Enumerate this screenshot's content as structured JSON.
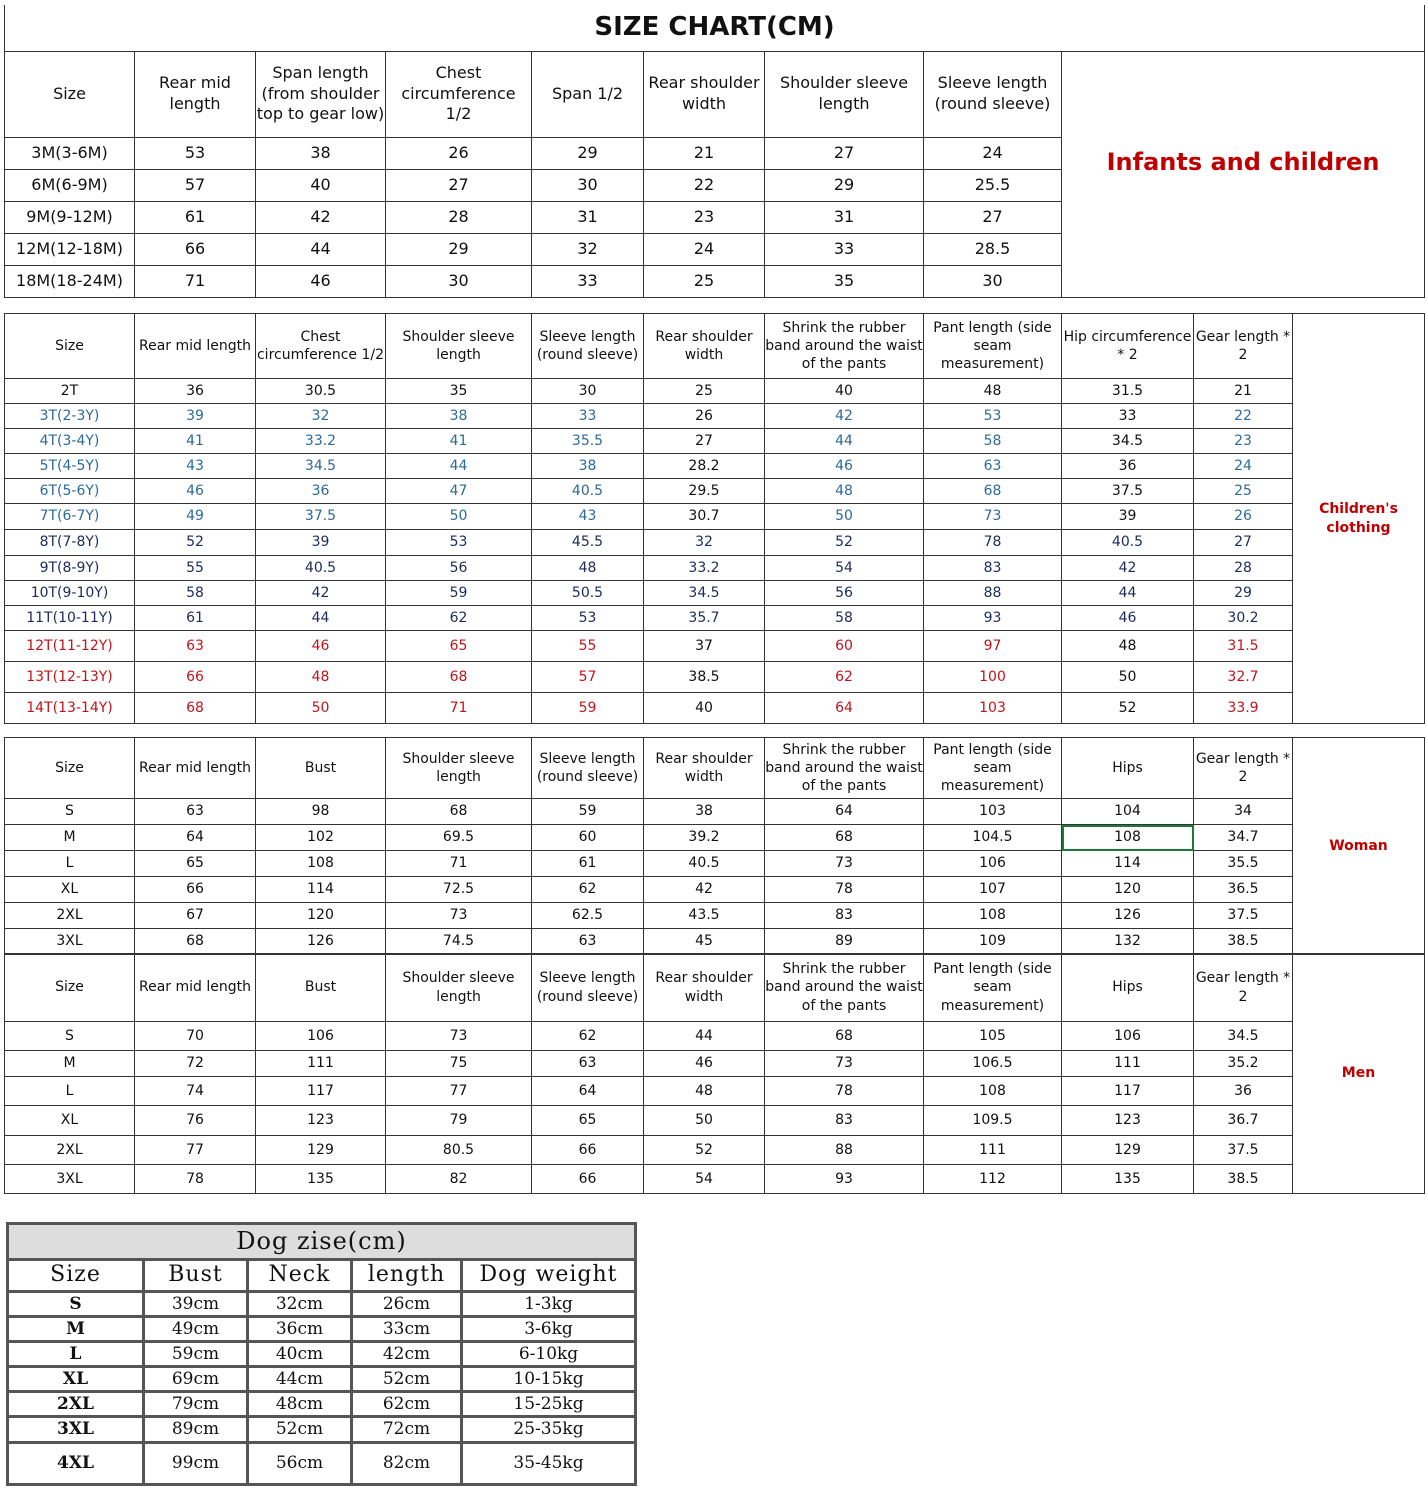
{
  "infant": {
    "title": "SIZE CHART(CM)",
    "label": "Infants and children",
    "headers": [
      "Size",
      "Rear mid length",
      "Span length (from shoulder top to gear low)",
      "Chest circumference 1/2",
      "Span 1/2",
      "Rear shoulder width",
      "Shoulder sleeve length",
      "Sleeve length (round sleeve)"
    ],
    "rows": [
      [
        "3M(3-6M)",
        "53",
        "38",
        "26",
        "29",
        "21",
        "27",
        "24"
      ],
      [
        "6M(6-9M)",
        "57",
        "40",
        "27",
        "30",
        "22",
        "29",
        "25.5"
      ],
      [
        "9M(9-12M)",
        "61",
        "42",
        "28",
        "31",
        "23",
        "31",
        "27"
      ],
      [
        "12M(12-18M)",
        "66",
        "44",
        "29",
        "32",
        "24",
        "33",
        "28.5"
      ],
      [
        "18M(18-24M)",
        "71",
        "46",
        "30",
        "33",
        "25",
        "35",
        "30"
      ]
    ]
  },
  "children": {
    "label": "Children's clothing",
    "headers": [
      "Size",
      "Rear mid length",
      "Chest circumference 1/2",
      "Shoulder sleeve length",
      "Sleeve length (round sleeve)",
      "Rear shoulder width",
      "Shrink the rubber band around the waist of the pants",
      "Pant length (side seam measurement)",
      "Hip circumference * 2",
      "Gear length * 2"
    ],
    "row_colors": [
      "black",
      "blue",
      "blue",
      "blue",
      "blue",
      "blue",
      "navy",
      "navy",
      "navy",
      "navy",
      "red",
      "red",
      "red"
    ],
    "colors": {
      "blue": "#2d6a9a",
      "navy": "#1c2b5a",
      "red": "#c0141c",
      "label": "#c00000"
    },
    "rows": [
      [
        "2T",
        "36",
        "30.5",
        "35",
        "30",
        "25",
        "40",
        "48",
        "31.5",
        "21"
      ],
      [
        "3T(2-3Y)",
        "39",
        "32",
        "38",
        "33",
        "26",
        "42",
        "53",
        "33",
        "22"
      ],
      [
        "4T(3-4Y)",
        "41",
        "33.2",
        "41",
        "35.5",
        "27",
        "44",
        "58",
        "34.5",
        "23"
      ],
      [
        "5T(4-5Y)",
        "43",
        "34.5",
        "44",
        "38",
        "28.2",
        "46",
        "63",
        "36",
        "24"
      ],
      [
        "6T(5-6Y)",
        "46",
        "36",
        "47",
        "40.5",
        "29.5",
        "48",
        "68",
        "37.5",
        "25"
      ],
      [
        "7T(6-7Y)",
        "49",
        "37.5",
        "50",
        "43",
        "30.7",
        "50",
        "73",
        "39",
        "26"
      ],
      [
        "8T(7-8Y)",
        "52",
        "39",
        "53",
        "45.5",
        "32",
        "52",
        "78",
        "40.5",
        "27"
      ],
      [
        "9T(8-9Y)",
        "55",
        "40.5",
        "56",
        "48",
        "33.2",
        "54",
        "83",
        "42",
        "28"
      ],
      [
        "10T(9-10Y)",
        "58",
        "42",
        "59",
        "50.5",
        "34.5",
        "56",
        "88",
        "44",
        "29"
      ],
      [
        "11T(10-11Y)",
        "61",
        "44",
        "62",
        "53",
        "35.7",
        "58",
        "93",
        "46",
        "30.2"
      ],
      [
        "12T(11-12Y)",
        "63",
        "46",
        "65",
        "55",
        "37",
        "60",
        "97",
        "48",
        "31.5"
      ],
      [
        "13T(12-13Y)",
        "66",
        "48",
        "68",
        "57",
        "38.5",
        "62",
        "100",
        "50",
        "32.7"
      ],
      [
        "14T(13-14Y)",
        "68",
        "50",
        "71",
        "59",
        "40",
        "64",
        "103",
        "52",
        "33.9"
      ]
    ]
  },
  "woman": {
    "label": "Woman",
    "headers": [
      "Size",
      "Rear mid length",
      "Bust",
      "Shoulder sleeve length",
      "Sleeve length (round sleeve)",
      "Rear shoulder width",
      "Shrink the rubber band around the waist of the pants",
      "Pant length (side seam measurement)",
      "Hips",
      "Gear length * 2"
    ],
    "rows": [
      [
        "S",
        "63",
        "98",
        "68",
        "59",
        "38",
        "64",
        "103",
        "104",
        "34"
      ],
      [
        "M",
        "64",
        "102",
        "69.5",
        "60",
        "39.2",
        "68",
        "104.5",
        "108",
        "34.7"
      ],
      [
        "L",
        "65",
        "108",
        "71",
        "61",
        "40.5",
        "73",
        "106",
        "114",
        "35.5"
      ],
      [
        "XL",
        "66",
        "114",
        "72.5",
        "62",
        "42",
        "78",
        "107",
        "120",
        "36.5"
      ],
      [
        "2XL",
        "67",
        "120",
        "73",
        "62.5",
        "43.5",
        "83",
        "108",
        "126",
        "37.5"
      ],
      [
        "3XL",
        "68",
        "126",
        "74.5",
        "63",
        "45",
        "89",
        "109",
        "132",
        "38.5"
      ]
    ]
  },
  "men": {
    "label": "Men",
    "headers": [
      "Size",
      "Rear mid length",
      "Bust",
      "Shoulder sleeve length",
      "Sleeve length (round sleeve)",
      "Rear shoulder width",
      "Shrink the rubber band around the waist of the pants",
      "Pant length (side seam measurement)",
      "Hips",
      "Gear length * 2"
    ],
    "rows": [
      [
        "S",
        "70",
        "106",
        "73",
        "62",
        "44",
        "68",
        "105",
        "106",
        "34.5"
      ],
      [
        "M",
        "72",
        "111",
        "75",
        "63",
        "46",
        "73",
        "106.5",
        "111",
        "35.2"
      ],
      [
        "L",
        "74",
        "117",
        "77",
        "64",
        "48",
        "78",
        "108",
        "117",
        "36"
      ],
      [
        "XL",
        "76",
        "123",
        "79",
        "65",
        "50",
        "83",
        "109.5",
        "123",
        "36.7"
      ],
      [
        "2XL",
        "77",
        "129",
        "80.5",
        "66",
        "52",
        "88",
        "111",
        "129",
        "37.5"
      ],
      [
        "3XL",
        "78",
        "135",
        "82",
        "66",
        "54",
        "93",
        "112",
        "135",
        "38.5"
      ]
    ]
  },
  "dog": {
    "title": "Dog zise(cm)",
    "headers": [
      "Size",
      "Bust",
      "Neck",
      "length",
      "Dog weight"
    ],
    "rows": [
      [
        "S",
        "39cm",
        "32cm",
        "26cm",
        "1-3kg"
      ],
      [
        "M",
        "49cm",
        "36cm",
        "33cm",
        "3-6kg"
      ],
      [
        "L",
        "59cm",
        "40cm",
        "42cm",
        "6-10kg"
      ],
      [
        "XL",
        "69cm",
        "44cm",
        "52cm",
        "10-15kg"
      ],
      [
        "2XL",
        "79cm",
        "48cm",
        "62cm",
        "15-25kg"
      ],
      [
        "3XL",
        "89cm",
        "52cm",
        "72cm",
        "25-35kg"
      ],
      [
        "4XL",
        "99cm",
        "56cm",
        "82cm",
        "35-45kg"
      ]
    ]
  }
}
